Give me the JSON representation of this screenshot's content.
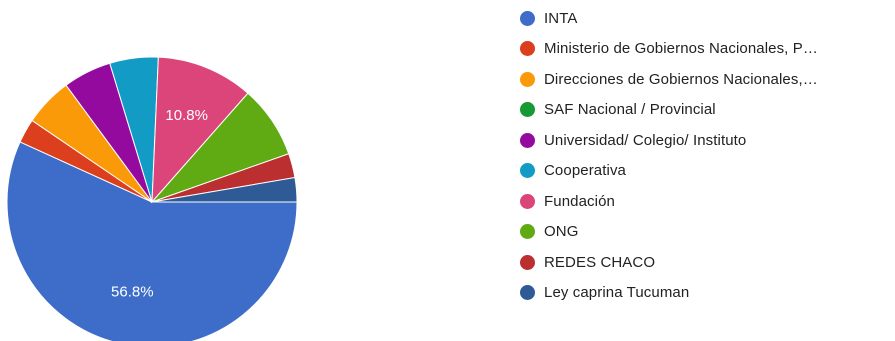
{
  "chart_data": {
    "type": "pie",
    "slices": [
      {
        "label": "INTA",
        "value": 56.8,
        "color": "#3d6cc9",
        "value_label": "56.8%"
      },
      {
        "label": "Ministerio de Gobiernos Nacionales, P…",
        "value": 2.7,
        "color": "#dc3f1e",
        "value_label": ""
      },
      {
        "label": "Direcciones de Gobiernos Nacionales,…",
        "value": 5.4,
        "color": "#fb9a08",
        "value_label": ""
      },
      {
        "label": "SAF Nacional / Provincial",
        "value": 0,
        "color": "#169a34",
        "value_label": ""
      },
      {
        "label": "Universidad/ Colegio/ Instituto",
        "value": 5.4,
        "color": "#950a9e",
        "value_label": ""
      },
      {
        "label": "Cooperativa",
        "value": 5.4,
        "color": "#129cc5",
        "value_label": ""
      },
      {
        "label": "Fundación",
        "value": 10.8,
        "color": "#db457a",
        "value_label": "10.8%"
      },
      {
        "label": "ONG",
        "value": 8.1,
        "color": "#60ab13",
        "value_label": ""
      },
      {
        "label": "REDES CHACO",
        "value": 2.7,
        "color": "#bb2f31",
        "value_label": ""
      },
      {
        "label": "Ley caprina Tucuman",
        "value": 2.7,
        "color": "#2e5b95",
        "value_label": ""
      }
    ],
    "start": "3 o'clock",
    "direction": "clockwise",
    "legend_position": "right"
  }
}
